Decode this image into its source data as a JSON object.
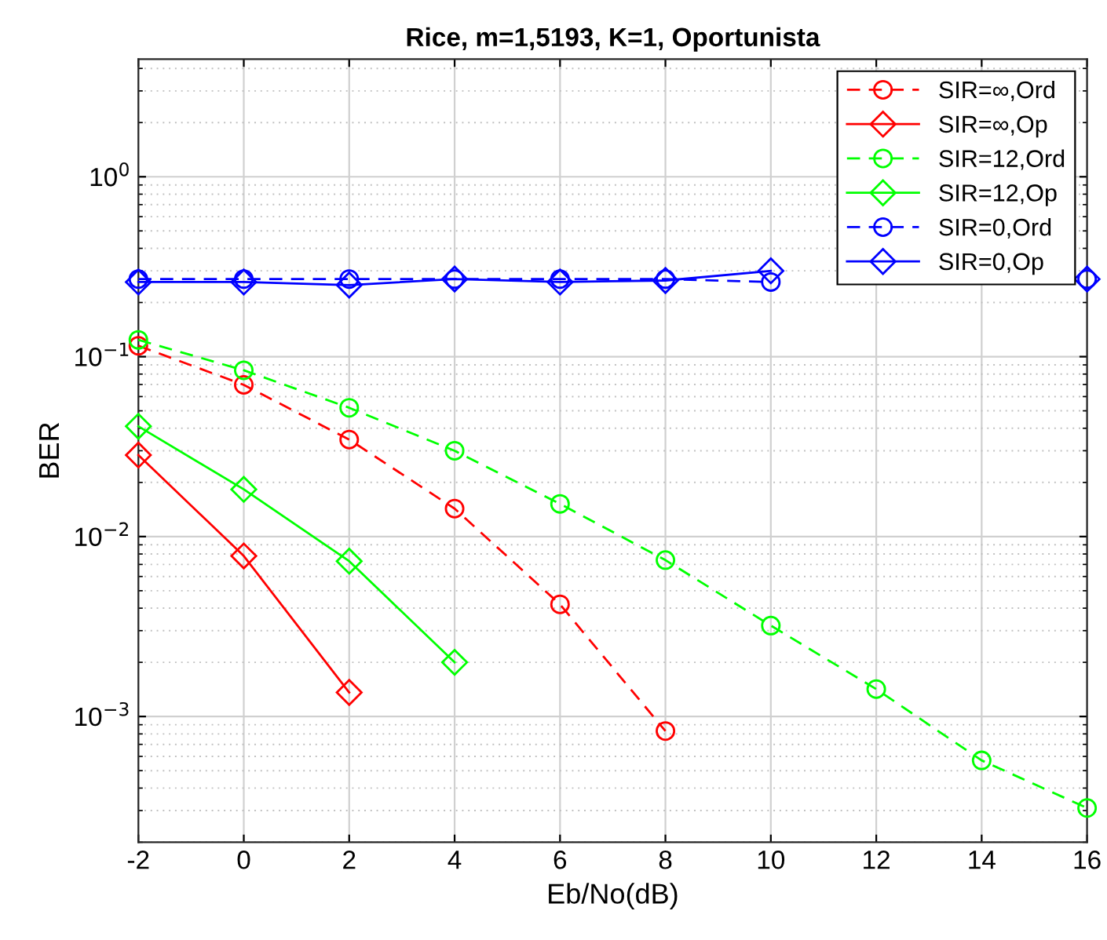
{
  "chart_data": {
    "type": "line",
    "title": "Rice, m=1,5193, K=1, Oportunista",
    "xlabel": "Eb/No(dB)",
    "ylabel": "BER",
    "x": [
      -2,
      0,
      2,
      4,
      6,
      8,
      10,
      12,
      14,
      16
    ],
    "series": [
      {
        "name": "SIR=∞,Ord",
        "color": "#ff0000",
        "marker": "circle",
        "line_style": "dashed",
        "values": [
          0.115,
          0.0697,
          0.0346,
          0.0143,
          0.0042,
          0.00083,
          null,
          null,
          null,
          null
        ]
      },
      {
        "name": "SIR=∞,Op",
        "color": "#ff0000",
        "marker": "diamond",
        "line_style": "solid",
        "values": [
          0.0284,
          0.0078,
          0.00136,
          null,
          null,
          null,
          null,
          null,
          null,
          null
        ]
      },
      {
        "name": "SIR=12,Ord",
        "color": "#00ff00",
        "marker": "circle",
        "line_style": "dashed",
        "values": [
          0.124,
          0.084,
          0.052,
          0.03,
          0.0152,
          0.0074,
          0.0032,
          0.00142,
          0.00057,
          0.00031
        ]
      },
      {
        "name": "SIR=12,Op",
        "color": "#00ff00",
        "marker": "diamond",
        "line_style": "solid",
        "values": [
          0.041,
          0.0183,
          0.0073,
          0.002,
          null,
          null,
          null,
          null,
          null,
          null
        ]
      },
      {
        "name": "SIR=0,Ord",
        "color": "#0000ff",
        "marker": "circle",
        "line_style": "dashed",
        "values": [
          0.27,
          0.27,
          0.27,
          0.27,
          0.27,
          0.27,
          0.26,
          null,
          null,
          0.27
        ]
      },
      {
        "name": "SIR=0,Op",
        "color": "#0000ff",
        "marker": "diamond",
        "line_style": "solid",
        "values": [
          0.26,
          0.26,
          0.25,
          0.27,
          0.26,
          0.265,
          0.3,
          null,
          null,
          0.27
        ]
      }
    ],
    "log": "y",
    "xlim": [
      -2,
      16
    ],
    "ylim": [
      0.0002,
      4.5
    ],
    "xticks": [
      -2,
      0,
      2,
      4,
      6,
      8,
      10,
      12,
      14,
      16
    ],
    "yticks": [
      {
        "value": 0.001,
        "label": "10$^{−3}$"
      },
      {
        "value": 0.01,
        "label": "10$^{−2}$"
      },
      {
        "value": 0.1,
        "label": "10$^{−1}$"
      },
      {
        "value": 1,
        "label": "10$^{0}$"
      }
    ],
    "grid": true,
    "legend": "top right"
  }
}
